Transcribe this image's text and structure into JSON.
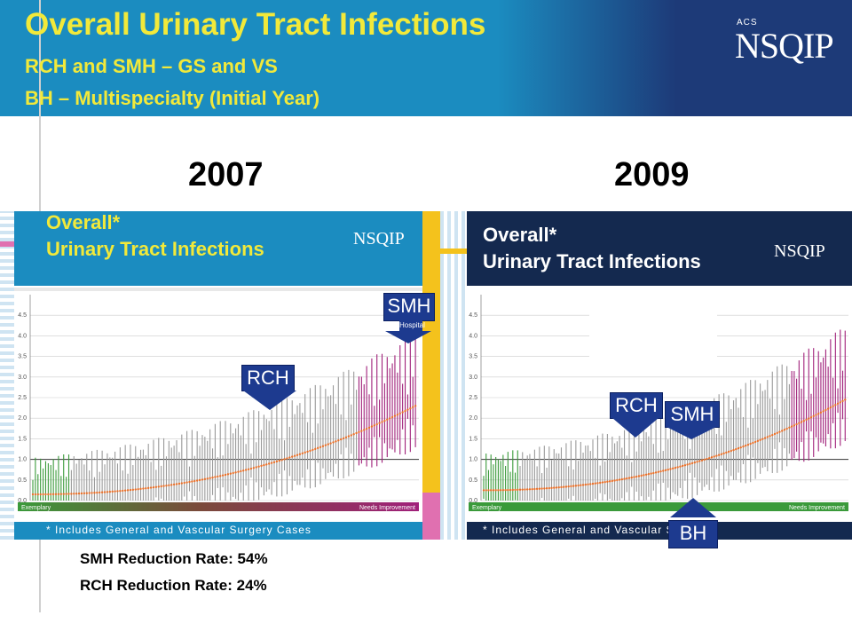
{
  "title": "Overall Urinary Tract Infections",
  "subtitle1": "RCH and SMH – GS and VS",
  "subtitle2": "BH – Multispecialty (Initial Year)",
  "logo": {
    "acs": "ACS",
    "main": "NSQIP"
  },
  "years": {
    "left": "2007",
    "right": "2009"
  },
  "stats": {
    "smh": "SMH Reduction Rate: 54%",
    "rch": "RCH Reduction Rate: 24%"
  },
  "chart_data": [
    {
      "type": "bar",
      "panel_title_1": "Overall*",
      "panel_title_2": "Urinary Tract Infections",
      "footnote": "* Includes General and Vascular Surgery Cases",
      "xlabel_left": "Exemplary",
      "xlabel_right": "Needs Improvement",
      "ylim": [
        0,
        5
      ],
      "yticks": [
        "0.0",
        "0.5",
        "1.0",
        "1.5",
        "2.0",
        "2.5",
        "3.0",
        "3.5",
        "4.0",
        "4.5"
      ],
      "estimate_range": [
        0.15,
        2.3
      ],
      "callouts": [
        {
          "label": "RCH",
          "value": 0.95
        },
        {
          "label": "SMH",
          "value": 4.1
        }
      ],
      "partial_label": "Hospital"
    },
    {
      "type": "bar",
      "panel_title_1": "Overall*",
      "panel_title_2": "Urinary Tract Infections",
      "footnote": "* Includes General and Vascular Surger",
      "xlabel_left": "Exemplary",
      "xlabel_right": "Needs Improvement",
      "ylim": [
        0,
        5
      ],
      "yticks": [
        "0.0",
        "0.5",
        "1.0",
        "1.5",
        "2.0",
        "2.5",
        "3.0",
        "3.5",
        "4.0",
        "4.5"
      ],
      "estimate_range": [
        0.25,
        2.45
      ],
      "callouts": [
        {
          "label": "RCH",
          "value": 0.9
        },
        {
          "label": "SMH",
          "value": 0.95
        },
        {
          "label": "BH",
          "value": 0.9
        }
      ]
    }
  ],
  "colors": {
    "header_blue": "#1b8cc0",
    "header_navy": "#1d3a78",
    "title_yellow": "#f2e93a",
    "callout_navy": "#1d3a8f",
    "exemplary_green": "#3a9a3a",
    "needs_improvement_magenta": "#a0207a",
    "estimate_orange": "#e8702a"
  }
}
